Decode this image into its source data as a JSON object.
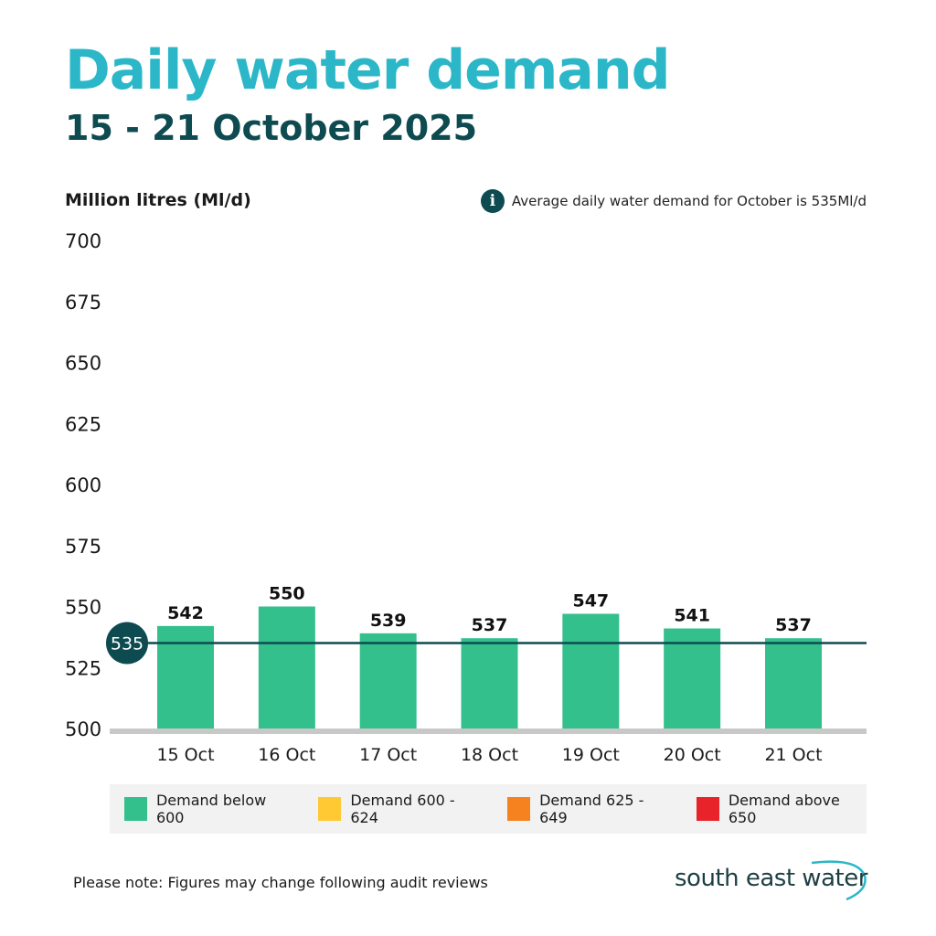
{
  "title": "Daily water demand",
  "subtitle": "15 - 21 October 2025",
  "note": "Average daily water demand for October is 535Ml/d",
  "footnote": "Please note: Figures may change following audit reviews",
  "logo": "south east water",
  "colors": {
    "title": "#2bb7c8",
    "dark": "#0d4b50",
    "bar": "#34c08d",
    "axis": "#c8c8c8"
  },
  "legend": [
    {
      "label": "Demand below 600",
      "color": "#34c08d"
    },
    {
      "label": "Demand 600 - 624",
      "color": "#ffc933"
    },
    {
      "label": "Demand 625 - 649",
      "color": "#f5821f"
    },
    {
      "label": "Demand above 650",
      "color": "#e8232a"
    }
  ],
  "chart_data": {
    "type": "bar",
    "title": "Daily water demand",
    "ylabel": "Million litres (Ml/d)",
    "xlabel": "",
    "categories": [
      "15 Oct",
      "16 Oct",
      "17 Oct",
      "18 Oct",
      "19 Oct",
      "20 Oct",
      "21 Oct"
    ],
    "values": [
      542,
      550,
      539,
      537,
      547,
      541,
      537
    ],
    "ylim": [
      500,
      700
    ],
    "yticks": [
      500,
      525,
      550,
      575,
      600,
      625,
      650,
      675,
      700
    ],
    "average_line": {
      "value": 535,
      "label": "535"
    },
    "grid": false
  }
}
